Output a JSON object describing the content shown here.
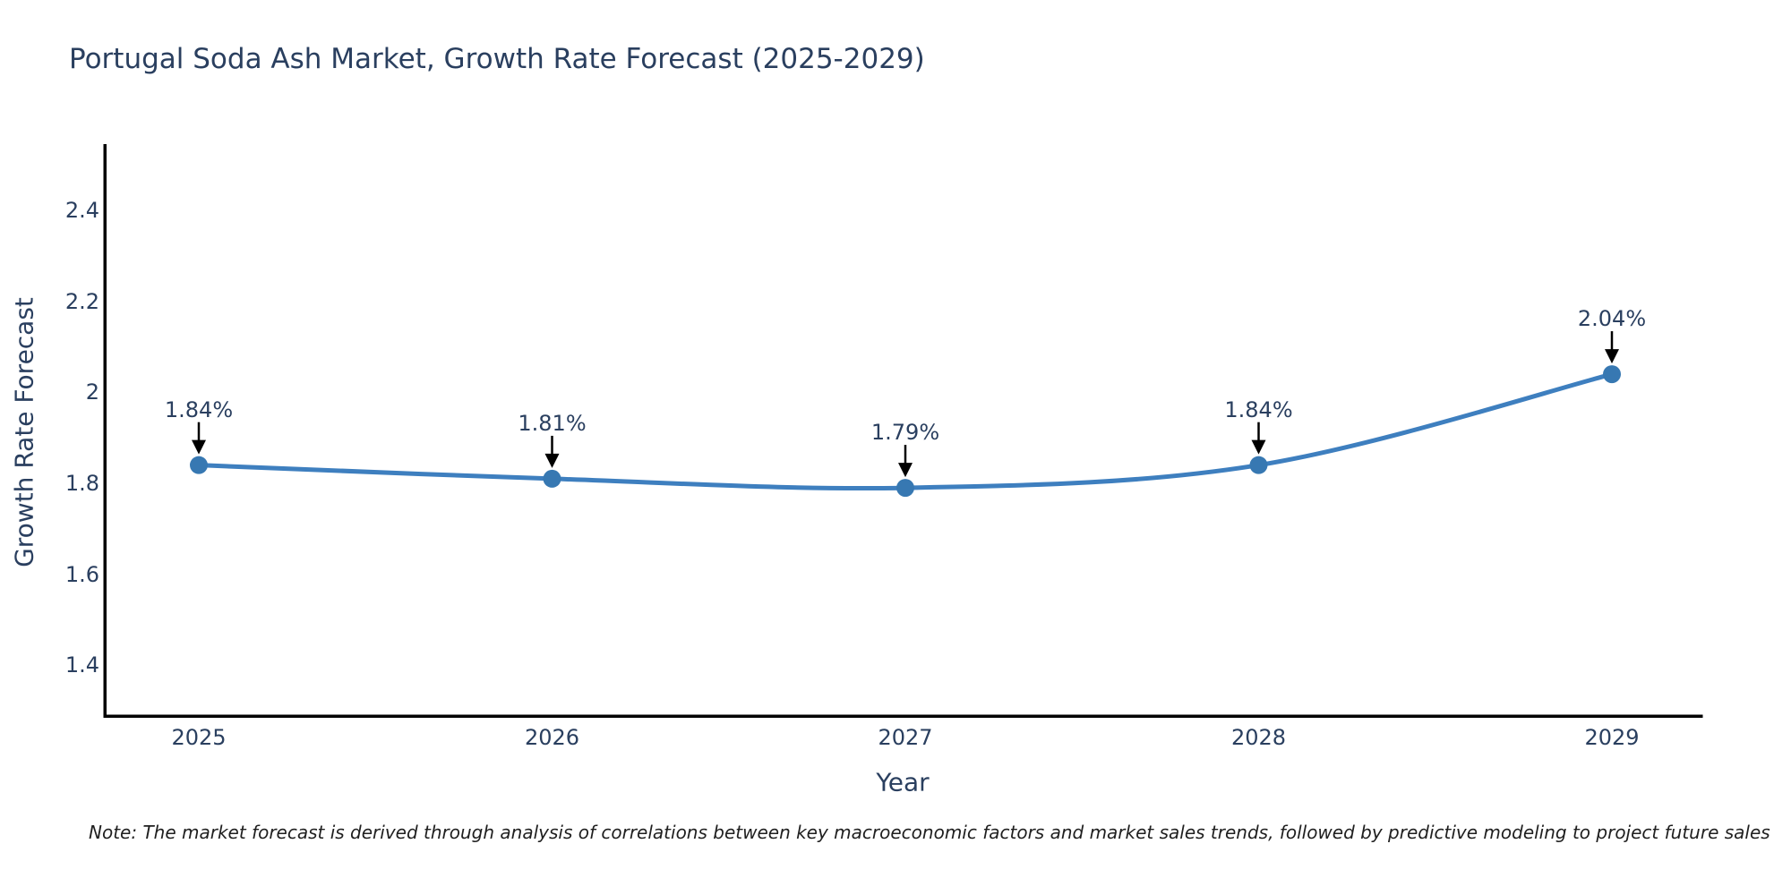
{
  "chart_data": {
    "type": "line",
    "title": "Portugal Soda Ash Market, Growth Rate Forecast (2025-2029)",
    "xlabel": "Year",
    "ylabel": "Growth Rate Forecast",
    "categories": [
      "2025",
      "2026",
      "2027",
      "2028",
      "2029"
    ],
    "values": [
      1.84,
      1.81,
      1.79,
      1.84,
      2.04
    ],
    "point_labels": [
      "1.84%",
      "1.81%",
      "1.79%",
      "1.84%",
      "2.04%"
    ],
    "series": [
      {
        "name": "Growth Rate Forecast",
        "values": [
          1.84,
          1.81,
          1.79,
          1.84,
          2.04
        ]
      }
    ],
    "y_ticks": [
      2.4,
      2.2,
      2.0,
      1.8,
      1.6,
      1.4
    ],
    "y_tick_labels": [
      "2.4",
      "2.2",
      "2",
      "1.8",
      "1.6",
      "1.4"
    ],
    "ylim": [
      1.29,
      2.54
    ],
    "grid": false,
    "legend_position": "none",
    "line_shape": "spline",
    "line_color": "#3e7fbf",
    "marker_color": "#3778b2",
    "arrow_color": "#000000",
    "axis_color": "#000000",
    "text_color": "#2a3f5f"
  },
  "note": {
    "text": "Note: The market forecast is derived through analysis of correlations between key macroeconomic factors and market sales trends, followed by predictive modeling to project future sales"
  }
}
